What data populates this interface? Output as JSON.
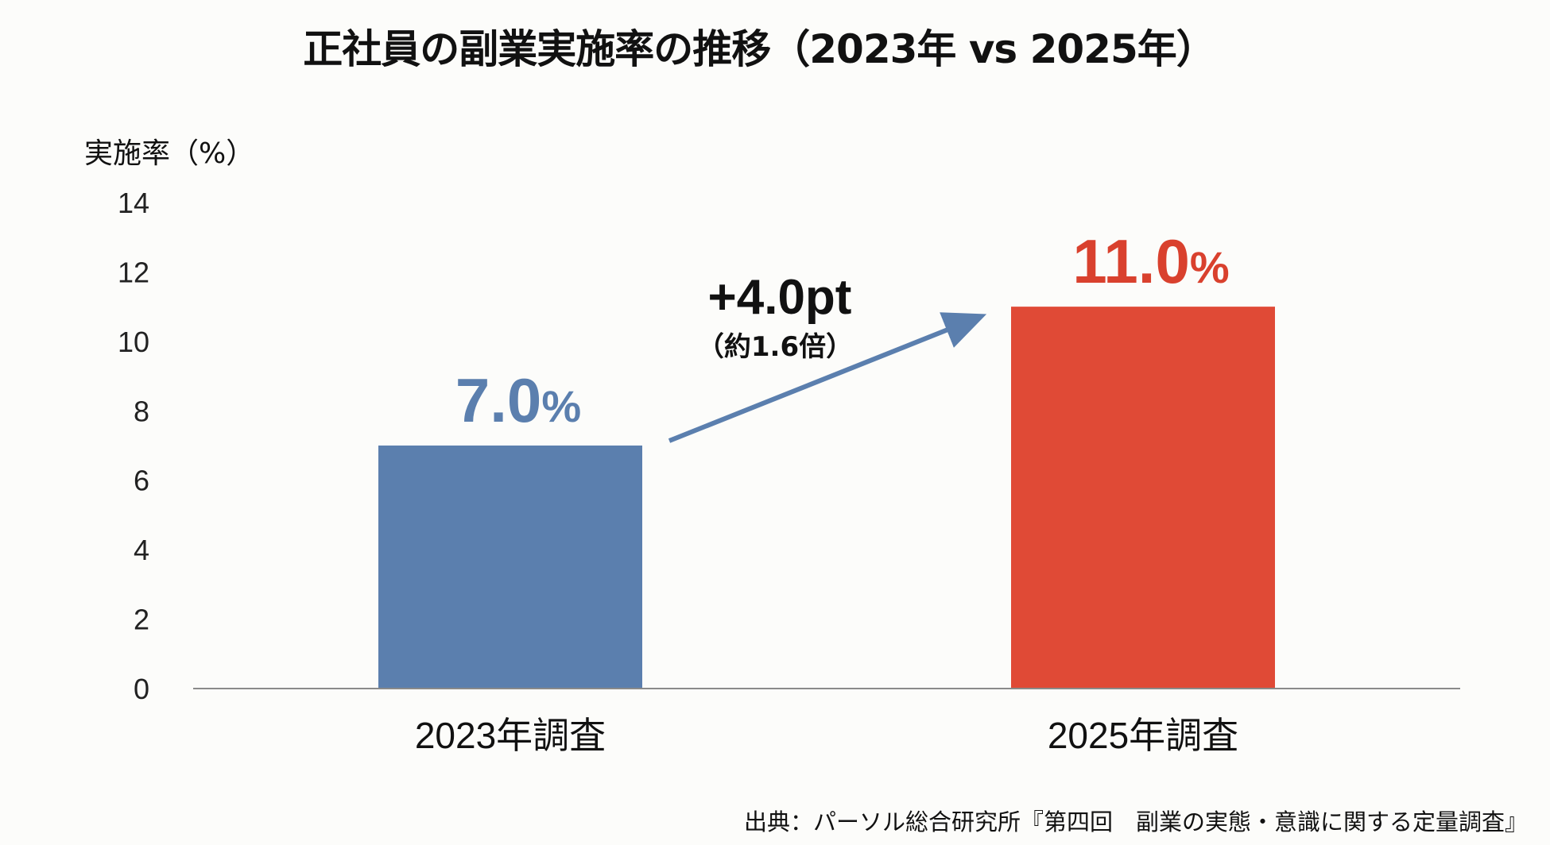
{
  "chart_data": {
    "type": "bar",
    "title": "正社員の副業実施率の推移（2023年 vs 2025年）",
    "ylabel": "実施率（%）",
    "xlabel": "",
    "categories": [
      "2023年調査",
      "2025年調査"
    ],
    "values": [
      7.0,
      11.0
    ],
    "value_labels": [
      "7.0",
      "11.0"
    ],
    "value_suffix": "%",
    "ylim": [
      0,
      14
    ],
    "yticks": [
      "0",
      "2",
      "4",
      "6",
      "8",
      "10",
      "12",
      "14"
    ],
    "grid": false,
    "colors": [
      "#5b7fae",
      "#e04a36"
    ],
    "label_colors": [
      "#5b7fae",
      "#d9412e"
    ],
    "annotation": {
      "delta": "+4.0pt",
      "ratio": "（約1.6倍）",
      "arrow_color": "#5b7fae"
    },
    "source": "出典：パーソル総合研究所『第四回　副業の実態・意識に関する定量調査』"
  }
}
